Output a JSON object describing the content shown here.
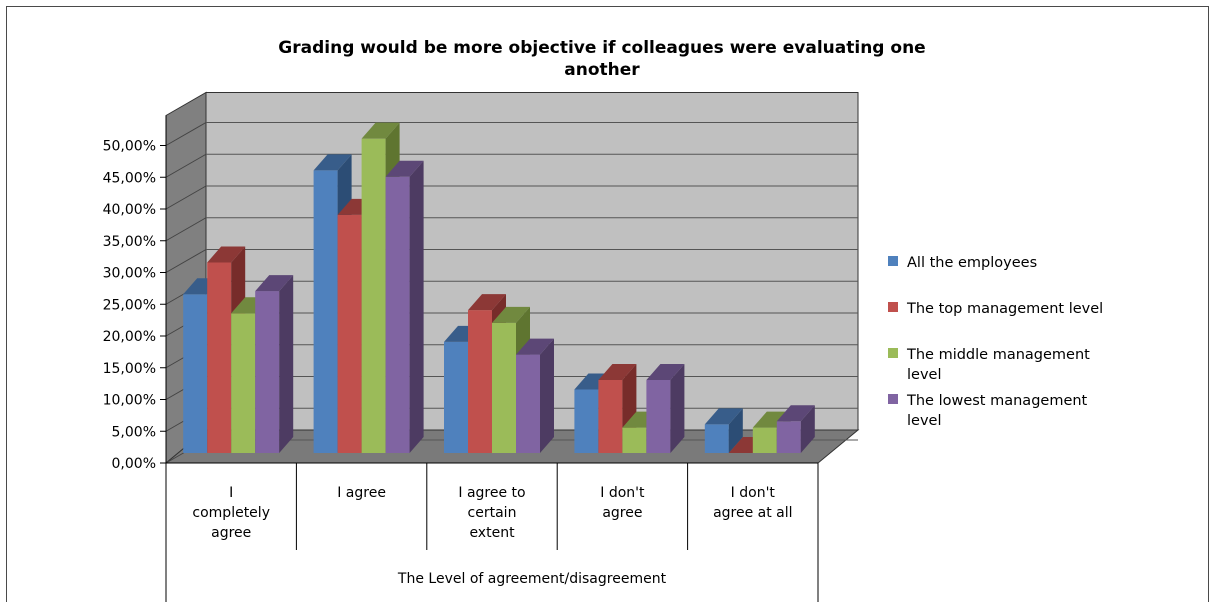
{
  "chart_data": {
    "type": "bar",
    "title_lines": [
      "Grading would be more objective if colleagues were evaluating one",
      "another"
    ],
    "xlabel": "The Level of agreement/disagreement",
    "ylabel": "",
    "ylim": [
      0,
      50
    ],
    "yticks": [
      "0,00%",
      "5,00%",
      "10,00%",
      "15,00%",
      "20,00%",
      "25,00%",
      "30,00%",
      "35,00%",
      "40,00%",
      "45,00%",
      "50,00%"
    ],
    "categories": [
      [
        "I",
        "completely",
        "agree"
      ],
      [
        "I agree"
      ],
      [
        "I agree to",
        "certain",
        "extent"
      ],
      [
        "I don't",
        "agree"
      ],
      [
        "I don't",
        "agree at all"
      ]
    ],
    "series": [
      {
        "name_lines": [
          "All the employees"
        ],
        "color": "#4f81bd",
        "top": "#385d8a",
        "side": "#2c4d75",
        "values": [
          25,
          44.5,
          17.5,
          10,
          4.5
        ]
      },
      {
        "name_lines": [
          "The top management level"
        ],
        "color": "#c0504d",
        "top": "#8c3836",
        "side": "#772c2a",
        "values": [
          30,
          37.5,
          22.5,
          11.5,
          0
        ]
      },
      {
        "name_lines": [
          "The middle management",
          "level"
        ],
        "color": "#9bbb59",
        "top": "#71893f",
        "side": "#5f7530",
        "values": [
          22,
          49.5,
          20.5,
          4,
          4
        ]
      },
      {
        "name_lines": [
          "The lowest management",
          "level"
        ],
        "color": "#8064a2",
        "top": "#5c4776",
        "side": "#4d3b62",
        "values": [
          25.5,
          43.5,
          15.5,
          11.5,
          5
        ]
      }
    ],
    "legend_position": "right",
    "grid": true
  }
}
